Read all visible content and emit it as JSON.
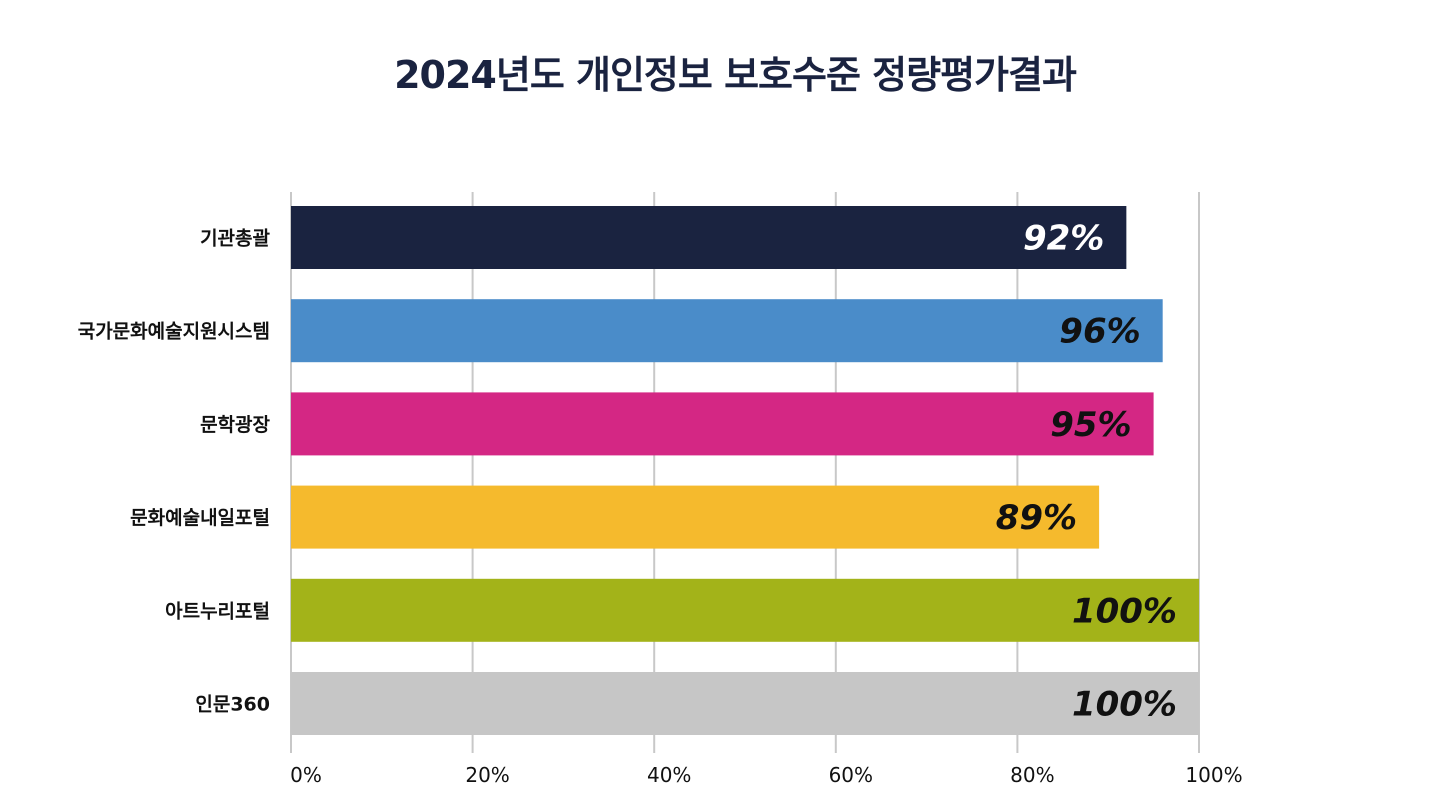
{
  "chart_data": {
    "type": "bar",
    "orientation": "horizontal",
    "title": "2024년도 개인정보 보호수준 정량평가결과",
    "categories": [
      "기관총괄",
      "국가문화예술지원시스템",
      "문학광장",
      "문화예술내일포털",
      "아트누리포털",
      "인문360"
    ],
    "values": [
      92,
      96,
      95,
      89,
      100,
      100
    ],
    "data_labels": [
      "92%",
      "96%",
      "95%",
      "89%",
      "100%",
      "100%"
    ],
    "bar_colors": [
      "#1a2340",
      "#4a8cc9",
      "#d42784",
      "#f5ba2d",
      "#a3b319",
      "#c6c6c6"
    ],
    "label_colors": [
      "#ffffff",
      "#111111",
      "#111111",
      "#111111",
      "#111111",
      "#111111"
    ],
    "xlim": [
      0,
      100
    ],
    "xticks": [
      0,
      20,
      40,
      60,
      80,
      100
    ],
    "xtick_labels": [
      "0%",
      "20%",
      "40%",
      "60%",
      "80%",
      "100%"
    ],
    "grid": true,
    "legend": "none"
  }
}
